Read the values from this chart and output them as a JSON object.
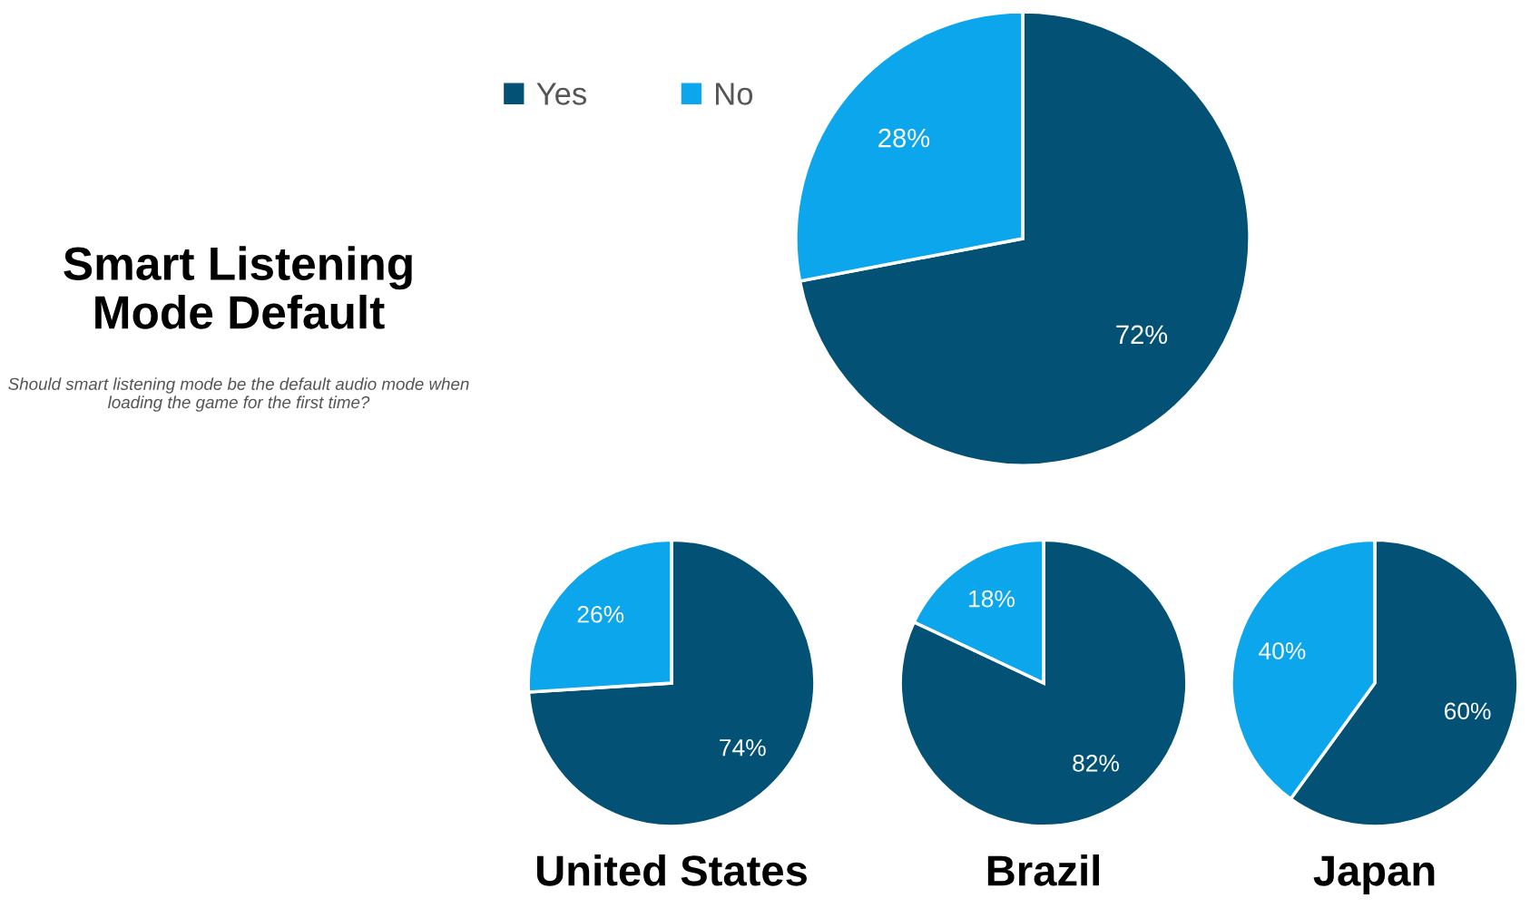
{
  "chart_data": [
    {
      "type": "pie",
      "title": "Smart Listening Mode Default",
      "subtitle": "Should smart listening mode be the default audio mode when loading the game for the first time?",
      "categories": [
        "Yes",
        "No"
      ],
      "values": [
        72,
        28
      ],
      "colors": [
        "#035275",
        "#0ba6ec"
      ],
      "value_labels": [
        "72%",
        "28%"
      ],
      "legend": "top left"
    },
    {
      "type": "pie",
      "annotations": [
        "United States"
      ],
      "categories": [
        null,
        null
      ],
      "values": [
        74,
        26
      ],
      "colors": [
        "#035275",
        "#0ba6ec"
      ],
      "value_labels": [
        "74%",
        "26%"
      ]
    },
    {
      "type": "pie",
      "annotations": [
        "Brazil"
      ],
      "categories": [
        null,
        null
      ],
      "values": [
        82,
        18
      ],
      "colors": [
        "#035275",
        "#0ba6ec"
      ],
      "value_labels": [
        "82%",
        "18%"
      ]
    },
    {
      "type": "pie",
      "annotations": [
        "Japan"
      ],
      "categories": [
        null,
        null
      ],
      "values": [
        60,
        40
      ],
      "colors": [
        "#035275",
        "#0ba6ec"
      ],
      "value_labels": [
        "60%",
        "40%"
      ]
    }
  ]
}
